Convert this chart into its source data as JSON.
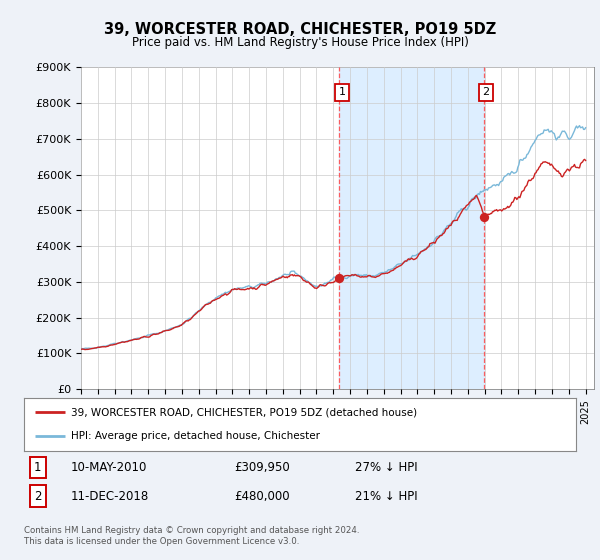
{
  "title": "39, WORCESTER ROAD, CHICHESTER, PO19 5DZ",
  "subtitle": "Price paid vs. HM Land Registry's House Price Index (HPI)",
  "ylabel_ticks": [
    "£0",
    "£100K",
    "£200K",
    "£300K",
    "£400K",
    "£500K",
    "£600K",
    "£700K",
    "£800K",
    "£900K"
  ],
  "ylim": [
    0,
    900000
  ],
  "xlim_start": 1995.0,
  "xlim_end": 2025.5,
  "hpi_color": "#7ab8d9",
  "price_color": "#cc2222",
  "shade_color": "#ddeeff",
  "marker1_date": 2010.36,
  "marker1_price": 309950,
  "marker1_label": "1",
  "marker1_text": "10-MAY-2010",
  "marker1_amount": "£309,950",
  "marker1_note": "27% ↓ HPI",
  "marker2_date": 2018.94,
  "marker2_price": 480000,
  "marker2_label": "2",
  "marker2_text": "11-DEC-2018",
  "marker2_amount": "£480,000",
  "marker2_note": "21% ↓ HPI",
  "legend_line1": "39, WORCESTER ROAD, CHICHESTER, PO19 5DZ (detached house)",
  "legend_line2": "HPI: Average price, detached house, Chichester",
  "footnote": "Contains HM Land Registry data © Crown copyright and database right 2024.\nThis data is licensed under the Open Government Licence v3.0.",
  "background_color": "#eef2f8",
  "plot_bg_color": "#ffffff"
}
